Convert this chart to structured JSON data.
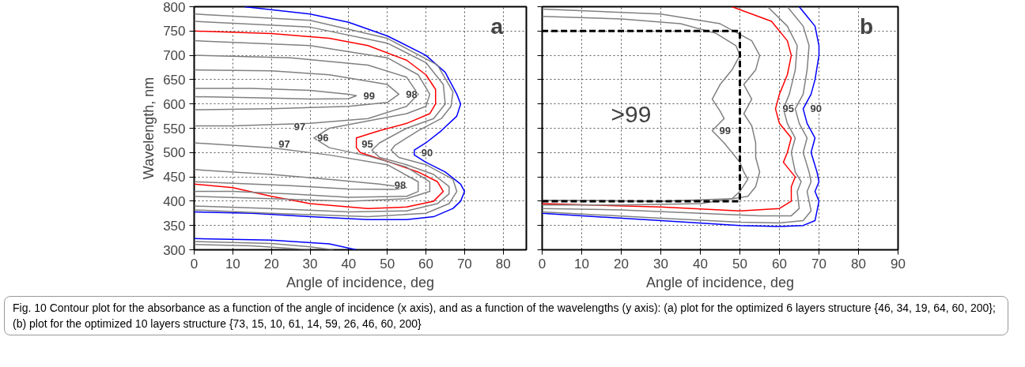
{
  "chart_data": [
    {
      "type": "line",
      "title": "a",
      "xlabel": "Angle of incidence, deg",
      "ylabel": "Wavelength, nm",
      "xlim": [
        0,
        86
      ],
      "ylim": [
        300,
        800
      ],
      "xticks": [
        0,
        10,
        20,
        30,
        40,
        50,
        60,
        70,
        80
      ],
      "yticks": [
        300,
        350,
        400,
        450,
        500,
        550,
        600,
        650,
        700,
        750,
        800
      ],
      "grid": true,
      "line_style": "solid",
      "series": [
        {
          "color": "#0000ff",
          "x": [
            13,
            30,
            40,
            50,
            60,
            65,
            68,
            69,
            68,
            64,
            60,
            57,
            57,
            60,
            65,
            69,
            70,
            69,
            67,
            62,
            55,
            45,
            30,
            15,
            0
          ],
          "values": [
            800,
            785,
            768,
            740,
            700,
            665,
            620,
            600,
            575,
            545,
            520,
            505,
            495,
            480,
            460,
            435,
            420,
            400,
            385,
            368,
            362,
            362,
            368,
            375,
            378
          ]
        },
        {
          "color": "#0000ff",
          "x": [
            0,
            20,
            35,
            42
          ],
          "values": [
            323,
            320,
            312,
            300
          ]
        },
        {
          "color": "#808080",
          "x": [
            0,
            20,
            30,
            36
          ],
          "values": [
            317,
            313,
            306,
            300
          ]
        },
        {
          "color": "#808080",
          "x": [
            0,
            15,
            25,
            30
          ],
          "values": [
            311,
            308,
            303,
            300
          ]
        },
        {
          "color": "#808080",
          "x": [
            0,
            30,
            50,
            63,
            67,
            66.5,
            64,
            58,
            52,
            51,
            53,
            60,
            67,
            68,
            66,
            60,
            45,
            20,
            0
          ],
          "values": [
            785,
            772,
            735,
            680,
            625,
            595,
            570,
            545,
            515,
            505,
            490,
            475,
            445,
            420,
            395,
            375,
            368,
            375,
            382
          ]
        },
        {
          "color": "#808080",
          "x": [
            0,
            30,
            50,
            60,
            64.5,
            65,
            62,
            55,
            48,
            46,
            48,
            55,
            62,
            66,
            66,
            63,
            55,
            40,
            20,
            0
          ],
          "values": [
            770,
            758,
            725,
            685,
            640,
            600,
            570,
            550,
            520,
            505,
            490,
            475,
            455,
            430,
            415,
            395,
            380,
            378,
            385,
            390
          ]
        },
        {
          "color": "#ff0000",
          "x": [
            0,
            20,
            35,
            45,
            55,
            60,
            62.5,
            62.5,
            61,
            55,
            48,
            42,
            42,
            43,
            50,
            58,
            63,
            64.5,
            62,
            55,
            45,
            30,
            20,
            10,
            0
          ],
          "values": [
            750,
            745,
            735,
            720,
            690,
            660,
            630,
            600,
            580,
            560,
            545,
            530,
            510,
            500,
            482,
            460,
            440,
            420,
            400,
            388,
            385,
            395,
            410,
            428,
            435
          ]
        },
        {
          "color": "#808080",
          "x": [
            0,
            30,
            50,
            58,
            61,
            60,
            55,
            45,
            35,
            31,
            35,
            45,
            55,
            61,
            61,
            55,
            40,
            20,
            0
          ],
          "values": [
            730,
            720,
            695,
            660,
            620,
            595,
            580,
            565,
            550,
            530,
            510,
            493,
            470,
            440,
            420,
            405,
            400,
            405,
            410
          ]
        },
        {
          "color": "#808080",
          "x": [
            0,
            25,
            45,
            55,
            58,
            55,
            45,
            30,
            10,
            0
          ],
          "values": [
            700,
            695,
            680,
            655,
            620,
            595,
            570,
            560,
            555,
            555
          ]
        },
        {
          "color": "#808080",
          "x": [
            0,
            20,
            35,
            50,
            58,
            58,
            55,
            40,
            25,
            10,
            0
          ],
          "values": [
            520,
            510,
            495,
            475,
            440,
            420,
            410,
            408,
            415,
            420,
            420
          ]
        },
        {
          "color": "#808080",
          "x": [
            0,
            20,
            35,
            50,
            53,
            50,
            40,
            20,
            0
          ],
          "values": [
            670,
            668,
            660,
            640,
            620,
            603,
            595,
            590,
            588
          ]
        },
        {
          "color": "#808080",
          "x": [
            0,
            15,
            30,
            40,
            42,
            40,
            30,
            20,
            0
          ],
          "values": [
            632,
            632,
            628,
            620,
            617,
            611,
            610,
            612,
            615
          ]
        },
        {
          "color": "#808080",
          "x": [
            0,
            20,
            35,
            48,
            55,
            52,
            40,
            25,
            0
          ],
          "values": [
            465,
            455,
            445,
            435,
            428,
            424,
            425,
            432,
            440
          ]
        }
      ],
      "annotations": [
        {
          "text": "99",
          "x": 42,
          "y": 617
        },
        {
          "text": "98",
          "x": 53,
          "y": 620
        },
        {
          "text": "97",
          "x": 24,
          "y": 553
        },
        {
          "text": "96",
          "x": 30,
          "y": 530
        },
        {
          "text": "97",
          "x": 20,
          "y": 517
        },
        {
          "text": "95",
          "x": 41.5,
          "y": 518
        },
        {
          "text": "90",
          "x": 57,
          "y": 500
        },
        {
          "text": "98",
          "x": 50,
          "y": 433
        },
        "Fig. 10 Contour plot for the absorbance as a function of the angle of incidence (x axis), and as a function of the wavelengths (y axis): (a) plot for the optimized 6 layers structure {46, 34, 19, 64, 60, 200}; (b) plot for the optimized 10 layers structure {73, 15, 10, 61, 14, 59, 26, 46, 60, 200}"
      ]
    },
    {
      "type": "line",
      "title": "b",
      "xlabel": "Angle of incidence, deg",
      "xlim": [
        0,
        90
      ],
      "ylim": [
        300,
        800
      ],
      "xticks": [
        0,
        10,
        20,
        30,
        40,
        50,
        60,
        70,
        80,
        90
      ],
      "yticks": [
        300,
        350,
        400,
        450,
        500,
        550,
        600,
        650,
        700,
        750,
        800
      ],
      "grid": true,
      "tick_labels": "x",
      "line_style": "solid",
      "series": [
        {
          "color": "#0000ff",
          "x": [
            65,
            69,
            70,
            70,
            69,
            68,
            66,
            67,
            69,
            68,
            69.5,
            70,
            69,
            70,
            69,
            66,
            60,
            50,
            30,
            0
          ],
          "values": [
            800,
            760,
            720,
            700,
            650,
            620,
            590,
            560,
            530,
            500,
            460,
            440,
            420,
            400,
            360,
            350,
            348,
            350,
            360,
            375
          ]
        },
        {
          "color": "#808080",
          "x": [
            62,
            66,
            67.5,
            67,
            66,
            64,
            65,
            67,
            66,
            67.5,
            68,
            67,
            68,
            66,
            60,
            50,
            30,
            0
          ],
          "values": [
            800,
            760,
            720,
            670,
            620,
            590,
            560,
            530,
            500,
            460,
            440,
            420,
            380,
            360,
            355,
            357,
            365,
            378
          ]
        },
        {
          "color": "#808080",
          "x": [
            57,
            62,
            64.5,
            64,
            62.5,
            61,
            62,
            64,
            63,
            64,
            65.5,
            64.5,
            65,
            63,
            55,
            40,
            20,
            0
          ],
          "values": [
            800,
            760,
            720,
            670,
            620,
            590,
            560,
            530,
            500,
            460,
            440,
            420,
            385,
            370,
            370,
            375,
            382,
            385
          ]
        },
        {
          "color": "#ff0000",
          "x": [
            48,
            58,
            62,
            63,
            62,
            60,
            59,
            60,
            63,
            62,
            61,
            64,
            63,
            63,
            60,
            50,
            30,
            0
          ],
          "values": [
            800,
            770,
            730,
            700,
            660,
            620,
            590,
            560,
            530,
            500,
            480,
            450,
            430,
            400,
            385,
            380,
            388,
            395
          ]
        },
        {
          "color": "#808080",
          "x": [
            0,
            30,
            45,
            53,
            55,
            54,
            51,
            53,
            51,
            53,
            54,
            54,
            55,
            54,
            52,
            40,
            20,
            0
          ],
          "values": [
            795,
            785,
            765,
            730,
            700,
            670,
            640,
            610,
            580,
            555,
            520,
            490,
            460,
            430,
            410,
            395,
            392,
            392
          ]
        },
        {
          "color": "#808080",
          "x": [
            0,
            20,
            35,
            44,
            49,
            50,
            48,
            45,
            43,
            45,
            46,
            43,
            46,
            50,
            51,
            52,
            50,
            48,
            30,
            0
          ],
          "values": [
            780,
            775,
            765,
            745,
            720,
            700,
            670,
            640,
            610,
            585,
            570,
            545,
            520,
            480,
            460,
            445,
            420,
            405,
            400,
            402
          ]
        },
        {
          "color": "#000000",
          "line_style": "dashed",
          "x": [
            0,
            50,
            50,
            0
          ],
          "values": [
            400,
            400,
            750,
            750
          ]
        }
      ],
      "annotations": [
        ">99",
        {
          "text": "99",
          "x": 43,
          "y": 545
        },
        {
          "text": "95",
          "x": 59,
          "y": 590
        },
        {
          "text": "90",
          "x": 66,
          "y": 590
        }
      ]
    }
  ]
}
